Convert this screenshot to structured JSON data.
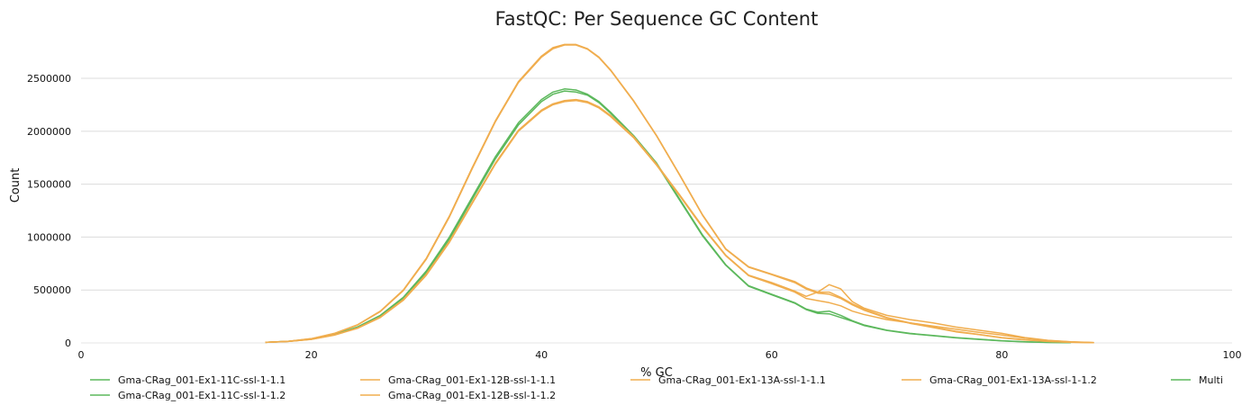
{
  "chart_data": {
    "type": "line",
    "title": "FastQC: Per Sequence GC Content",
    "xlabel": "% GC",
    "ylabel": "Count",
    "xlim": [
      0,
      100
    ],
    "ylim": [
      0,
      2900000
    ],
    "xticks": [
      "0",
      "20",
      "40",
      "60",
      "80",
      "100"
    ],
    "yticks": [
      "0",
      "500000",
      "1000000",
      "1500000",
      "2000000",
      "2500000"
    ],
    "grid": true,
    "legend_position": "bottom",
    "colors": {
      "pass": "#5cb85c",
      "warn": "#f0ad4e"
    },
    "series": [
      {
        "name": "Gma-CRag_001-Ex1-11C-ssl-1-1.1",
        "color": "#5cb85c",
        "x": [
          16,
          18,
          20,
          22,
          24,
          26,
          28,
          30,
          32,
          34,
          36,
          38,
          40,
          41,
          42,
          43,
          44,
          45,
          46,
          48,
          50,
          52,
          54,
          56,
          58,
          60,
          62,
          63,
          64,
          65,
          66,
          67,
          68,
          70,
          72,
          74,
          76,
          78,
          80,
          82,
          84,
          86
        ],
        "y": [
          5000,
          15000,
          35000,
          80000,
          150000,
          260000,
          430000,
          680000,
          1000000,
          1380000,
          1760000,
          2080000,
          2300000,
          2370000,
          2400000,
          2390000,
          2350000,
          2280000,
          2180000,
          1960000,
          1700000,
          1360000,
          1020000,
          740000,
          540000,
          460000,
          380000,
          320000,
          290000,
          300000,
          260000,
          210000,
          170000,
          120000,
          90000,
          70000,
          50000,
          35000,
          20000,
          10000,
          5000,
          2000
        ]
      },
      {
        "name": "Gma-CRag_001-Ex1-11C-ssl-1-1.2",
        "color": "#5cb85c",
        "x": [
          16,
          18,
          20,
          22,
          24,
          26,
          28,
          30,
          32,
          34,
          36,
          38,
          40,
          41,
          42,
          43,
          44,
          45,
          46,
          48,
          50,
          52,
          54,
          56,
          58,
          60,
          62,
          63,
          64,
          65,
          66,
          67,
          68,
          70,
          72,
          74,
          76,
          78,
          80,
          82,
          84,
          86
        ],
        "y": [
          5000,
          15000,
          35000,
          78000,
          146000,
          255000,
          420000,
          665000,
          980000,
          1360000,
          1740000,
          2060000,
          2280000,
          2350000,
          2380000,
          2370000,
          2340000,
          2270000,
          2170000,
          1950000,
          1690000,
          1350000,
          1010000,
          735000,
          535000,
          455000,
          375000,
          315000,
          280000,
          275000,
          240000,
          205000,
          165000,
          118000,
          88000,
          68000,
          48000,
          33000,
          19000,
          9000,
          4000,
          1500
        ]
      },
      {
        "name": "Gma-CRag_001-Ex1-12B-ssl-1-1.1",
        "color": "#f0ad4e",
        "x": [
          16,
          18,
          20,
          22,
          24,
          26,
          28,
          30,
          32,
          34,
          36,
          38,
          40,
          41,
          42,
          43,
          44,
          45,
          46,
          48,
          50,
          52,
          54,
          56,
          58,
          60,
          62,
          63,
          64,
          65,
          66,
          67,
          68,
          70,
          72,
          74,
          76,
          78,
          80,
          82,
          84,
          86,
          88
        ],
        "y": [
          5000,
          15000,
          40000,
          90000,
          170000,
          300000,
          500000,
          800000,
          1200000,
          1660000,
          2100000,
          2470000,
          2710000,
          2790000,
          2820000,
          2820000,
          2780000,
          2700000,
          2580000,
          2290000,
          1960000,
          1590000,
          1210000,
          890000,
          720000,
          650000,
          580000,
          520000,
          480000,
          480000,
          430000,
          370000,
          320000,
          240000,
          190000,
          150000,
          110000,
          80000,
          50000,
          30000,
          15000,
          6000,
          2000
        ]
      },
      {
        "name": "Gma-CRag_001-Ex1-12B-ssl-1-1.2",
        "color": "#f0ad4e",
        "x": [
          16,
          18,
          20,
          22,
          24,
          26,
          28,
          30,
          32,
          34,
          36,
          38,
          40,
          41,
          42,
          43,
          44,
          45,
          46,
          48,
          50,
          52,
          54,
          56,
          58,
          60,
          62,
          63,
          64,
          65,
          66,
          67,
          68,
          70,
          72,
          74,
          76,
          78,
          80,
          82,
          84,
          86,
          88
        ],
        "y": [
          5000,
          15000,
          40000,
          88000,
          168000,
          296000,
          494000,
          792000,
          1190000,
          1650000,
          2090000,
          2460000,
          2700000,
          2780000,
          2815000,
          2815000,
          2775000,
          2695000,
          2575000,
          2285000,
          1955000,
          1585000,
          1205000,
          885000,
          715000,
          645000,
          570000,
          510000,
          470000,
          460000,
          420000,
          360000,
          310000,
          235000,
          185000,
          145000,
          105000,
          78000,
          48000,
          28000,
          14000,
          5000,
          1500
        ]
      },
      {
        "name": "Gma-CRag_001-Ex1-13A-ssl-1-1.1",
        "color": "#f0ad4e",
        "x": [
          16,
          18,
          20,
          22,
          24,
          26,
          28,
          30,
          32,
          34,
          36,
          38,
          40,
          41,
          42,
          43,
          44,
          45,
          46,
          48,
          50,
          52,
          54,
          56,
          58,
          60,
          62,
          63,
          64,
          65,
          66,
          67,
          68,
          70,
          72,
          74,
          76,
          78,
          80,
          82,
          84,
          86,
          88
        ],
        "y": [
          5000,
          14000,
          34000,
          75000,
          140000,
          245000,
          410000,
          650000,
          960000,
          1330000,
          1700000,
          2010000,
          2200000,
          2260000,
          2290000,
          2300000,
          2280000,
          2230000,
          2150000,
          1950000,
          1690000,
          1400000,
          1100000,
          830000,
          640000,
          570000,
          490000,
          440000,
          480000,
          550000,
          510000,
          390000,
          330000,
          260000,
          220000,
          190000,
          150000,
          120000,
          90000,
          50000,
          25000,
          10000,
          3000
        ]
      },
      {
        "name": "Gma-CRag_001-Ex1-13A-ssl-1-1.2",
        "color": "#f0ad4e",
        "x": [
          16,
          18,
          20,
          22,
          24,
          26,
          28,
          30,
          32,
          34,
          36,
          38,
          40,
          41,
          42,
          43,
          44,
          45,
          46,
          48,
          50,
          52,
          54,
          56,
          58,
          60,
          62,
          63,
          64,
          65,
          66,
          67,
          68,
          70,
          72,
          74,
          76,
          78,
          80,
          82,
          84,
          86,
          88
        ],
        "y": [
          5000,
          14000,
          33000,
          73000,
          137000,
          240000,
          402000,
          640000,
          950000,
          1320000,
          1690000,
          2000000,
          2190000,
          2250000,
          2280000,
          2290000,
          2270000,
          2220000,
          2140000,
          1940000,
          1680000,
          1390000,
          1090000,
          825000,
          635000,
          560000,
          480000,
          420000,
          400000,
          380000,
          350000,
          300000,
          270000,
          220000,
          190000,
          160000,
          130000,
          100000,
          75000,
          45000,
          22000,
          9000,
          2500
        ]
      },
      {
        "name": "Multi",
        "color": "#5cb85c",
        "x": [],
        "y": []
      }
    ]
  }
}
